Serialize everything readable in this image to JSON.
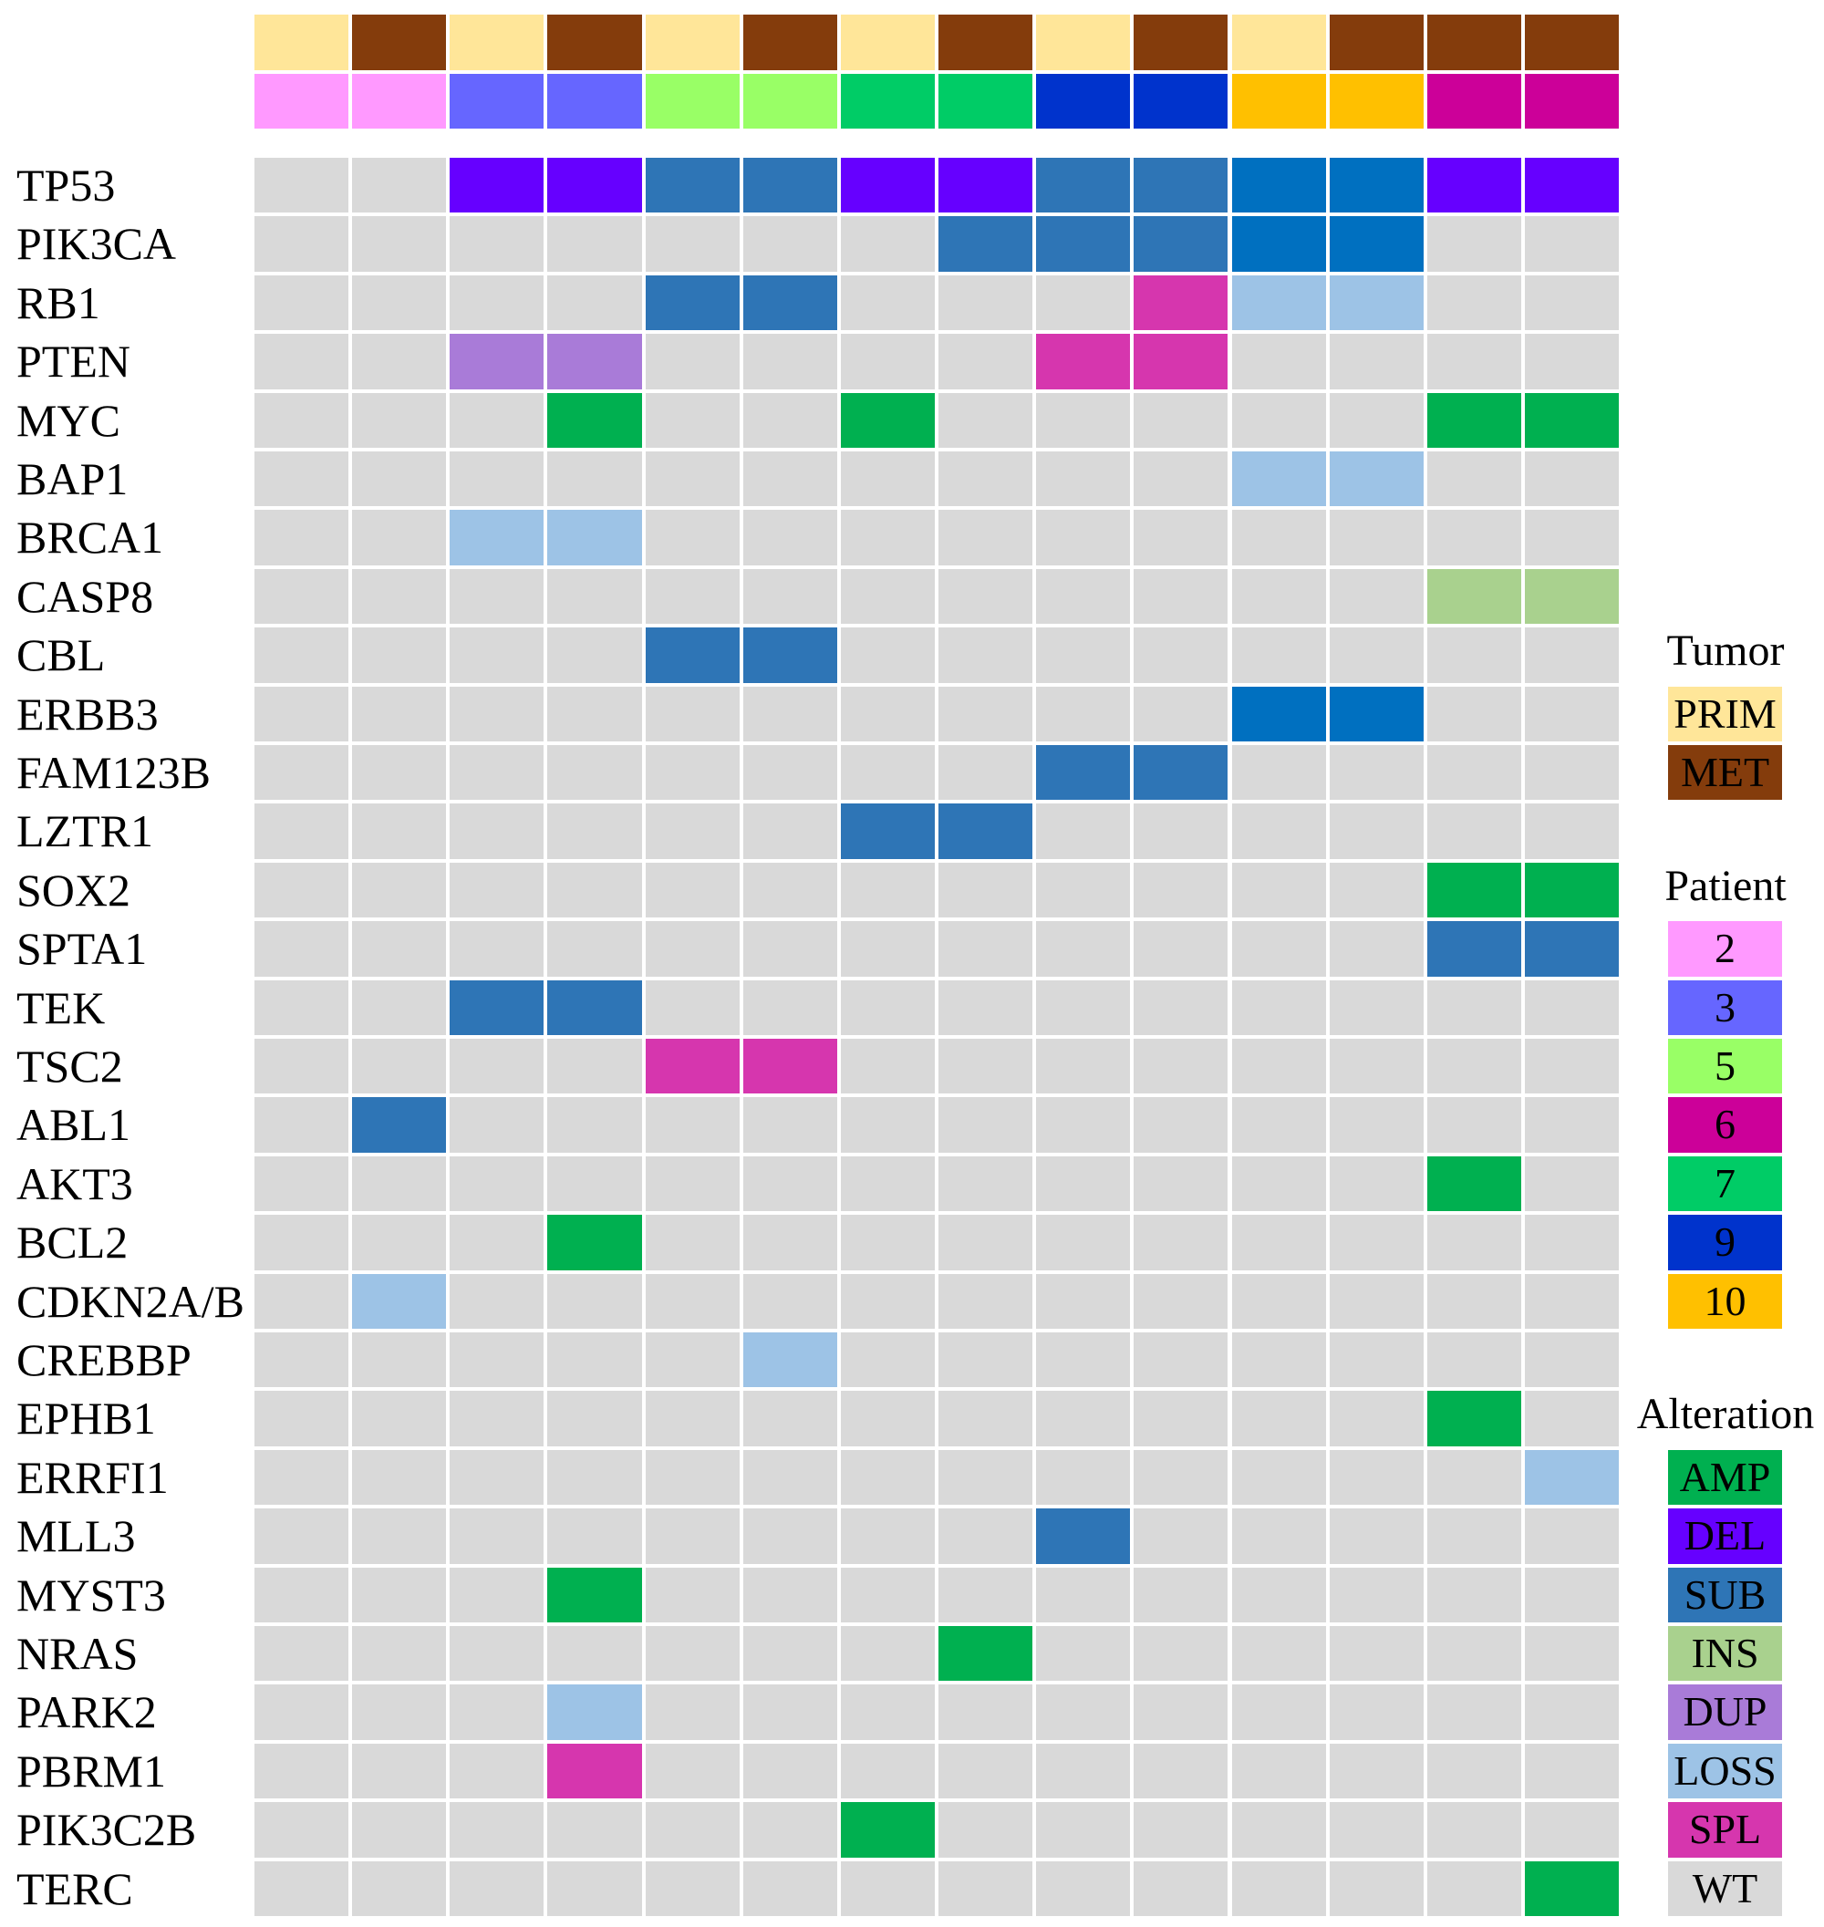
{
  "chart_data": {
    "type": "heatmap",
    "genes": [
      "TP53",
      "PIK3CA",
      "RB1",
      "PTEN",
      "MYC",
      "BAP1",
      "BRCA1",
      "CASP8",
      "CBL",
      "ERBB3",
      "FAM123B",
      "LZTR1",
      "SOX2",
      "SPTA1",
      "TEK",
      "TSC2",
      "ABL1",
      "AKT3",
      "BCL2",
      "CDKN2A/B",
      "CREBBP",
      "EPHB1",
      "ERRFI1",
      "MLL3",
      "MYST3",
      "NRAS",
      "PARK2",
      "PBRM1",
      "PIK3C2B",
      "TERC"
    ],
    "samples": {
      "tumor": [
        "PRIM",
        "MET",
        "PRIM",
        "MET",
        "PRIM",
        "MET",
        "PRIM",
        "MET",
        "PRIM",
        "MET",
        "PRIM",
        "MET",
        "MET",
        "MET"
      ],
      "patient": [
        "2",
        "2",
        "3",
        "3",
        "5",
        "5",
        "7",
        "7",
        "9",
        "9",
        "10",
        "10",
        "6",
        "6"
      ]
    },
    "matrix": [
      [
        "WT",
        "WT",
        "DEL",
        "DEL",
        "SUB",
        "SUB",
        "DEL",
        "DEL",
        "SUB",
        "SUB",
        "SUB*",
        "SUB*",
        "DEL",
        "DEL"
      ],
      [
        "WT",
        "WT",
        "WT",
        "WT",
        "WT",
        "WT",
        "WT",
        "SUB",
        "SUB",
        "SUB",
        "SUB*",
        "SUB*",
        "WT",
        "WT"
      ],
      [
        "WT",
        "WT",
        "WT",
        "WT",
        "SUB",
        "SUB",
        "WT",
        "WT",
        "WT",
        "SPL",
        "LOSS",
        "LOSS",
        "WT",
        "WT"
      ],
      [
        "WT",
        "WT",
        "DUP",
        "DUP",
        "WT",
        "WT",
        "WT",
        "WT",
        "SPL",
        "SPL",
        "WT",
        "WT",
        "WT",
        "WT"
      ],
      [
        "WT",
        "WT",
        "WT",
        "AMP",
        "WT",
        "WT",
        "AMP",
        "WT",
        "WT",
        "WT",
        "WT",
        "WT",
        "AMP",
        "AMP"
      ],
      [
        "WT",
        "WT",
        "WT",
        "WT",
        "WT",
        "WT",
        "WT",
        "WT",
        "WT",
        "WT",
        "LOSS",
        "LOSS",
        "WT",
        "WT"
      ],
      [
        "WT",
        "WT",
        "LOSS",
        "LOSS",
        "WT",
        "WT",
        "WT",
        "WT",
        "WT",
        "WT",
        "WT",
        "WT",
        "WT",
        "WT"
      ],
      [
        "WT",
        "WT",
        "WT",
        "WT",
        "WT",
        "WT",
        "WT",
        "WT",
        "WT",
        "WT",
        "WT",
        "WT",
        "INS",
        "INS"
      ],
      [
        "WT",
        "WT",
        "WT",
        "WT",
        "SUB",
        "SUB",
        "WT",
        "WT",
        "WT",
        "WT",
        "WT",
        "WT",
        "WT",
        "WT"
      ],
      [
        "WT",
        "WT",
        "WT",
        "WT",
        "WT",
        "WT",
        "WT",
        "WT",
        "WT",
        "WT",
        "SUB*",
        "SUB*",
        "WT",
        "WT"
      ],
      [
        "WT",
        "WT",
        "WT",
        "WT",
        "WT",
        "WT",
        "WT",
        "WT",
        "SUB",
        "SUB",
        "WT",
        "WT",
        "WT",
        "WT"
      ],
      [
        "WT",
        "WT",
        "WT",
        "WT",
        "WT",
        "WT",
        "SUB",
        "SUB",
        "WT",
        "WT",
        "WT",
        "WT",
        "WT",
        "WT"
      ],
      [
        "WT",
        "WT",
        "WT",
        "WT",
        "WT",
        "WT",
        "WT",
        "WT",
        "WT",
        "WT",
        "WT",
        "WT",
        "AMP",
        "AMP"
      ],
      [
        "WT",
        "WT",
        "WT",
        "WT",
        "WT",
        "WT",
        "WT",
        "WT",
        "WT",
        "WT",
        "WT",
        "WT",
        "SUB",
        "SUB"
      ],
      [
        "WT",
        "WT",
        "SUB",
        "SUB",
        "WT",
        "WT",
        "WT",
        "WT",
        "WT",
        "WT",
        "WT",
        "WT",
        "WT",
        "WT"
      ],
      [
        "WT",
        "WT",
        "WT",
        "WT",
        "SPL",
        "SPL",
        "WT",
        "WT",
        "WT",
        "WT",
        "WT",
        "WT",
        "WT",
        "WT"
      ],
      [
        "WT",
        "SUB",
        "WT",
        "WT",
        "WT",
        "WT",
        "WT",
        "WT",
        "WT",
        "WT",
        "WT",
        "WT",
        "WT",
        "WT"
      ],
      [
        "WT",
        "WT",
        "WT",
        "WT",
        "WT",
        "WT",
        "WT",
        "WT",
        "WT",
        "WT",
        "WT",
        "WT",
        "AMP",
        "WT"
      ],
      [
        "WT",
        "WT",
        "WT",
        "AMP",
        "WT",
        "WT",
        "WT",
        "WT",
        "WT",
        "WT",
        "WT",
        "WT",
        "WT",
        "WT"
      ],
      [
        "WT",
        "LOSS",
        "WT",
        "WT",
        "WT",
        "WT",
        "WT",
        "WT",
        "WT",
        "WT",
        "WT",
        "WT",
        "WT",
        "WT"
      ],
      [
        "WT",
        "WT",
        "WT",
        "WT",
        "WT",
        "LOSS",
        "WT",
        "WT",
        "WT",
        "WT",
        "WT",
        "WT",
        "WT",
        "WT"
      ],
      [
        "WT",
        "WT",
        "WT",
        "WT",
        "WT",
        "WT",
        "WT",
        "WT",
        "WT",
        "WT",
        "WT",
        "WT",
        "AMP",
        "WT"
      ],
      [
        "WT",
        "WT",
        "WT",
        "WT",
        "WT",
        "WT",
        "WT",
        "WT",
        "WT",
        "WT",
        "WT",
        "WT",
        "WT",
        "LOSS"
      ],
      [
        "WT",
        "WT",
        "WT",
        "WT",
        "WT",
        "WT",
        "WT",
        "WT",
        "SUB",
        "WT",
        "WT",
        "WT",
        "WT",
        "WT"
      ],
      [
        "WT",
        "WT",
        "WT",
        "AMP",
        "WT",
        "WT",
        "WT",
        "WT",
        "WT",
        "WT",
        "WT",
        "WT",
        "WT",
        "WT"
      ],
      [
        "WT",
        "WT",
        "WT",
        "WT",
        "WT",
        "WT",
        "WT",
        "AMP",
        "WT",
        "WT",
        "WT",
        "WT",
        "WT",
        "WT"
      ],
      [
        "WT",
        "WT",
        "WT",
        "LOSS",
        "WT",
        "WT",
        "WT",
        "WT",
        "WT",
        "WT",
        "WT",
        "WT",
        "WT",
        "WT"
      ],
      [
        "WT",
        "WT",
        "WT",
        "SPL",
        "WT",
        "WT",
        "WT",
        "WT",
        "WT",
        "WT",
        "WT",
        "WT",
        "WT",
        "WT"
      ],
      [
        "WT",
        "WT",
        "WT",
        "WT",
        "WT",
        "WT",
        "AMP",
        "WT",
        "WT",
        "WT",
        "WT",
        "WT",
        "WT",
        "WT"
      ],
      [
        "WT",
        "WT",
        "WT",
        "WT",
        "WT",
        "WT",
        "WT",
        "WT",
        "WT",
        "WT",
        "WT",
        "WT",
        "WT",
        "AMP"
      ]
    ],
    "legend": {
      "tumor": {
        "title": "Tumor",
        "items": [
          "PRIM",
          "MET"
        ]
      },
      "patient": {
        "title": "Patient",
        "items": [
          "2",
          "3",
          "5",
          "6",
          "7",
          "9",
          "10"
        ]
      },
      "alteration": {
        "title": "Alteration",
        "items": [
          "AMP",
          "DEL",
          "SUB",
          "INS",
          "DUP",
          "LOSS",
          "SPL",
          "WT"
        ]
      },
      "placement": "right"
    },
    "colors": {
      "tumor": {
        "PRIM": "#FFE699",
        "MET": "#843C0C"
      },
      "patient": {
        "2": "#FF99FF",
        "3": "#6666FF",
        "5": "#99FF66",
        "6": "#CC0099",
        "7": "#00CC66",
        "9": "#0033CC",
        "10": "#FFC000"
      },
      "alteration": {
        "AMP": "#00B050",
        "DEL": "#6600FF",
        "SUB": "#2E75B6",
        "SUB*": "#0070C0",
        "INS": "#A9D18E",
        "DUP": "#A97BD8",
        "LOSS": "#9DC3E6",
        "SPL": "#D636AE",
        "WT": "#D9D9D9"
      }
    }
  }
}
